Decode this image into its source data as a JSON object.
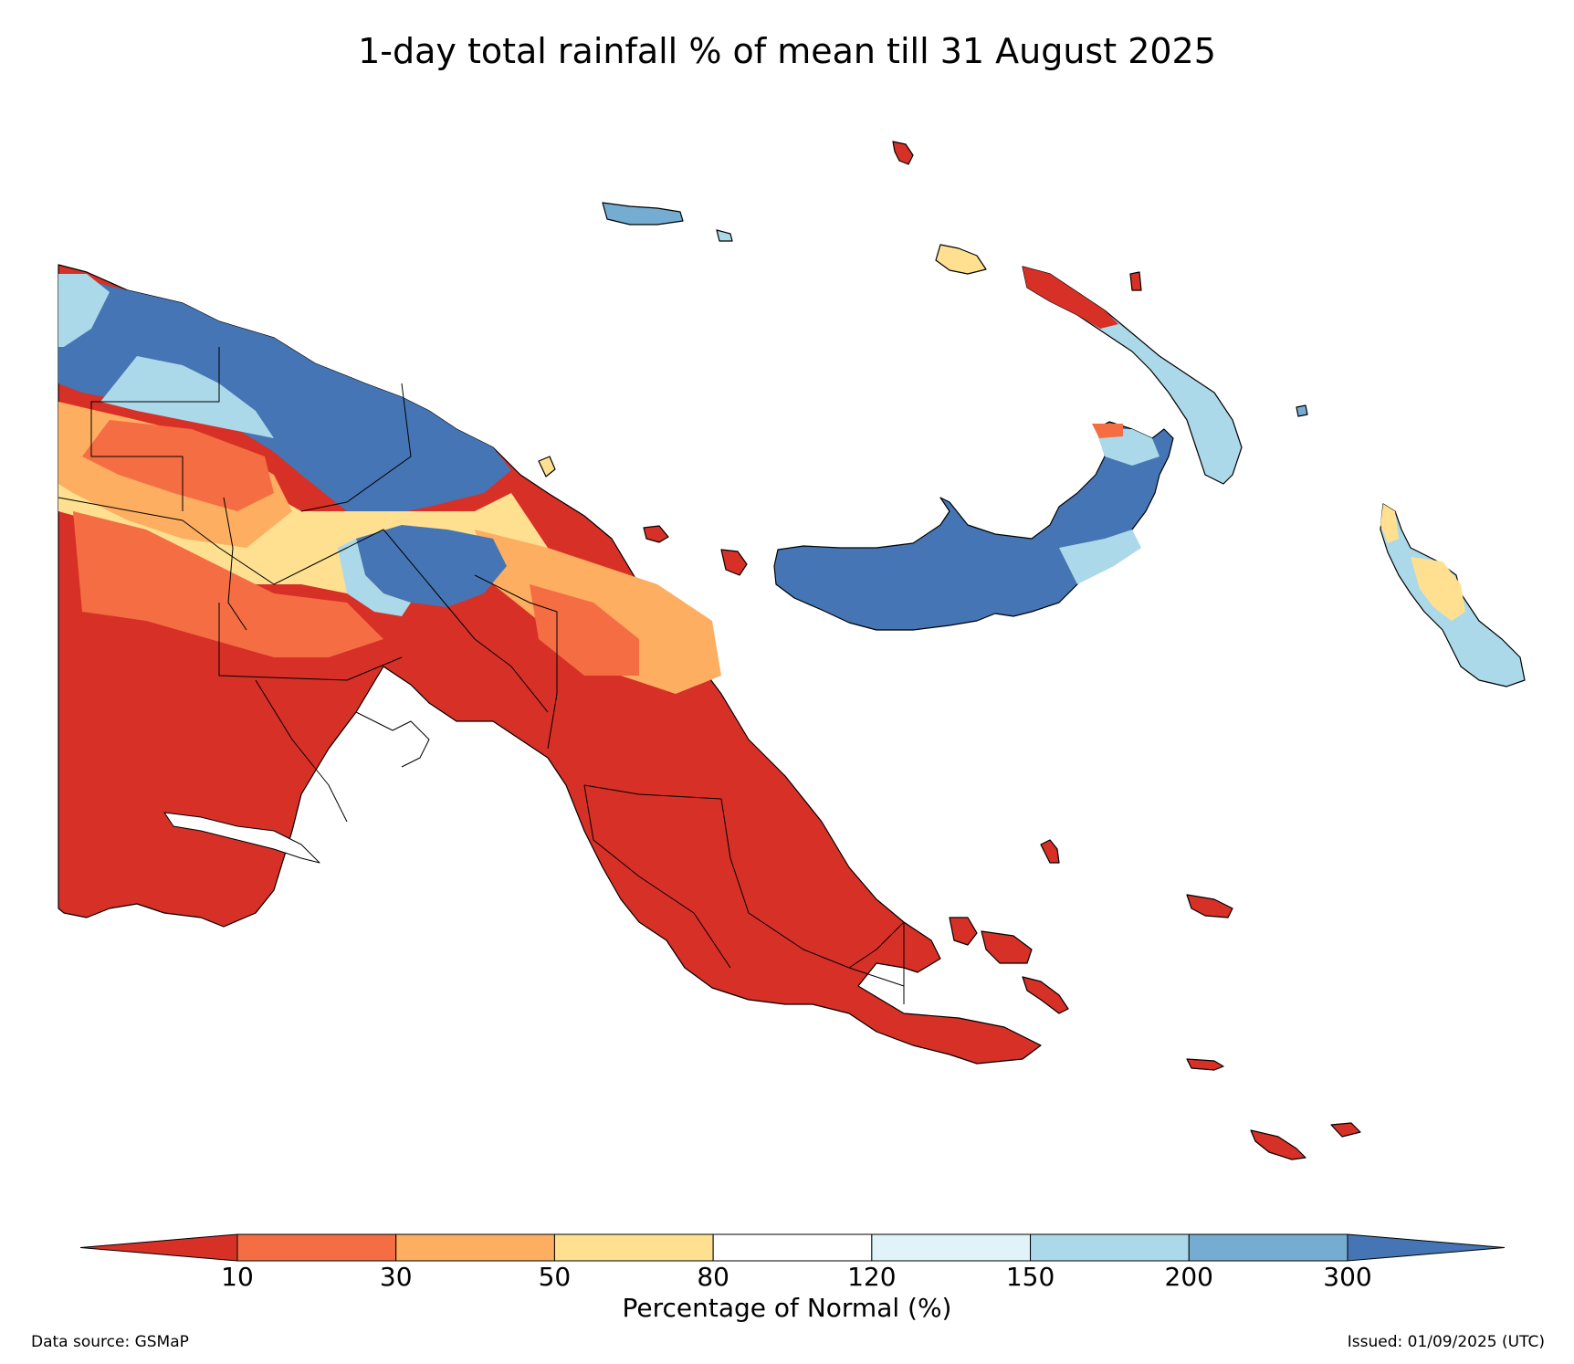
{
  "title": "1-day total rainfall % of mean till 31 August 2025",
  "colorbar": {
    "label": "Percentage of Normal (%)",
    "ticks": [
      "10",
      "30",
      "50",
      "80",
      "120",
      "150",
      "200",
      "300"
    ],
    "colors": [
      "#d73027",
      "#f46d43",
      "#fdae61",
      "#fee090",
      "#ffffff",
      "#e0f3f8",
      "#abd9e9",
      "#74add1",
      "#4575b4"
    ]
  },
  "footer": {
    "source": "Data source: GSMaP",
    "issued": "Issued: 01/09/2025 (UTC)"
  },
  "palette": {
    "very_dry": "#d73027",
    "dry": "#f46d43",
    "below": "#fdae61",
    "slightly_below": "#fee090",
    "normal": "#ffffff",
    "slightly_above": "#e0f3f8",
    "above": "#abd9e9",
    "wet": "#74add1",
    "very_wet": "#4575b4"
  }
}
